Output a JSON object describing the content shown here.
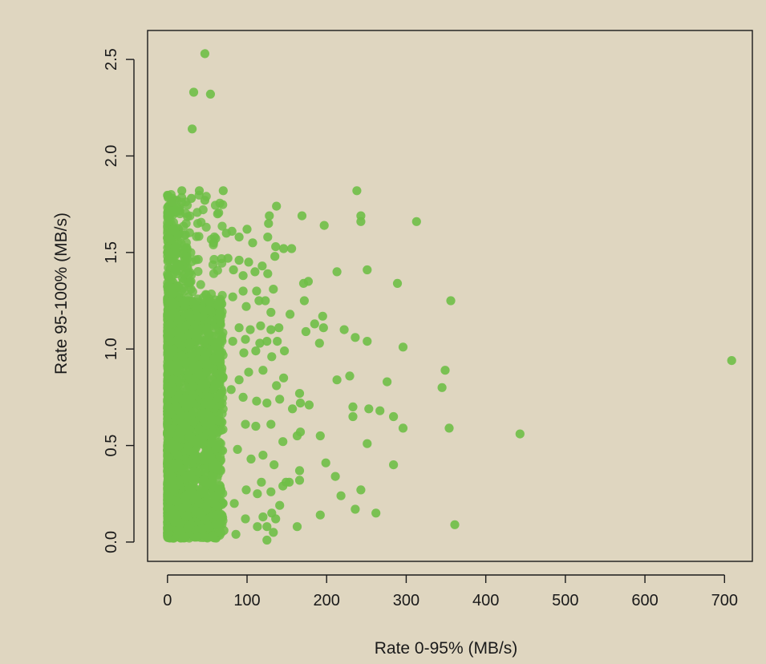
{
  "chart_data": {
    "type": "scatter",
    "title": "",
    "xlabel": "Rate 0-95% (MB/s)",
    "ylabel": "Rate 95-100% (MB/s)",
    "xlim": [
      -25,
      735
    ],
    "ylim": [
      -0.1,
      2.65
    ],
    "xticks": [
      0,
      100,
      200,
      300,
      400,
      500,
      600,
      700
    ],
    "xtick_labels": [
      "0",
      "100",
      "200",
      "300",
      "400",
      "500",
      "600",
      "700"
    ],
    "yticks": [
      0.0,
      0.5,
      1.0,
      1.5,
      2.0,
      2.5
    ],
    "ytick_labels": [
      "0.0",
      "0.5",
      "1.0",
      "1.5",
      "2.0",
      "2.5"
    ],
    "grid": false,
    "colors": {
      "point": "#6fbf47",
      "background": "#dfd6c0",
      "axis": "#1a1a1a"
    },
    "series": [
      {
        "points": [
          [
            47,
            2.53
          ],
          [
            33,
            2.33
          ],
          [
            54,
            2.32
          ],
          [
            31,
            2.14
          ],
          [
            70,
            1.82
          ],
          [
            238,
            1.82
          ],
          [
            243,
            1.69
          ],
          [
            243,
            1.66
          ],
          [
            313,
            1.66
          ],
          [
            169,
            1.69
          ],
          [
            137,
            1.74
          ],
          [
            128,
            1.69
          ],
          [
            127,
            1.65
          ],
          [
            197,
            1.64
          ],
          [
            100,
            1.62
          ],
          [
            90,
            1.58
          ],
          [
            81,
            1.61
          ],
          [
            74,
            1.6
          ],
          [
            107,
            1.55
          ],
          [
            126,
            1.58
          ],
          [
            136,
            1.53
          ],
          [
            146,
            1.52
          ],
          [
            156,
            1.52
          ],
          [
            135,
            1.48
          ],
          [
            119,
            1.43
          ],
          [
            102,
            1.45
          ],
          [
            90,
            1.46
          ],
          [
            76,
            1.47
          ],
          [
            83,
            1.41
          ],
          [
            95,
            1.38
          ],
          [
            110,
            1.4
          ],
          [
            126,
            1.39
          ],
          [
            251,
            1.41
          ],
          [
            213,
            1.4
          ],
          [
            289,
            1.34
          ],
          [
            177,
            1.35
          ],
          [
            171,
            1.34
          ],
          [
            133,
            1.31
          ],
          [
            112,
            1.3
          ],
          [
            95,
            1.3
          ],
          [
            82,
            1.27
          ],
          [
            99,
            1.22
          ],
          [
            115,
            1.25
          ],
          [
            123,
            1.25
          ],
          [
            130,
            1.19
          ],
          [
            154,
            1.18
          ],
          [
            172,
            1.25
          ],
          [
            356,
            1.25
          ],
          [
            195,
            1.17
          ],
          [
            185,
            1.13
          ],
          [
            196,
            1.11
          ],
          [
            222,
            1.1
          ],
          [
            174,
            1.09
          ],
          [
            140,
            1.11
          ],
          [
            130,
            1.1
          ],
          [
            117,
            1.12
          ],
          [
            104,
            1.1
          ],
          [
            90,
            1.11
          ],
          [
            82,
            1.04
          ],
          [
            98,
            1.05
          ],
          [
            116,
            1.03
          ],
          [
            125,
            1.04
          ],
          [
            138,
            1.04
          ],
          [
            147,
            0.99
          ],
          [
            131,
            0.96
          ],
          [
            111,
            0.99
          ],
          [
            96,
            0.98
          ],
          [
            191,
            1.03
          ],
          [
            236,
            1.06
          ],
          [
            251,
            1.04
          ],
          [
            296,
            1.01
          ],
          [
            709,
            0.94
          ],
          [
            349,
            0.89
          ],
          [
            345,
            0.8
          ],
          [
            276,
            0.83
          ],
          [
            229,
            0.86
          ],
          [
            213,
            0.84
          ],
          [
            146,
            0.85
          ],
          [
            137,
            0.81
          ],
          [
            120,
            0.89
          ],
          [
            102,
            0.88
          ],
          [
            90,
            0.84
          ],
          [
            80,
            0.79
          ],
          [
            95,
            0.75
          ],
          [
            112,
            0.73
          ],
          [
            125,
            0.72
          ],
          [
            141,
            0.74
          ],
          [
            157,
            0.69
          ],
          [
            166,
            0.77
          ],
          [
            167,
            0.72
          ],
          [
            178,
            0.71
          ],
          [
            233,
            0.7
          ],
          [
            233,
            0.65
          ],
          [
            253,
            0.69
          ],
          [
            267,
            0.68
          ],
          [
            284,
            0.65
          ],
          [
            296,
            0.59
          ],
          [
            354,
            0.59
          ],
          [
            443,
            0.56
          ],
          [
            251,
            0.51
          ],
          [
            192,
            0.55
          ],
          [
            167,
            0.57
          ],
          [
            163,
            0.55
          ],
          [
            145,
            0.52
          ],
          [
            130,
            0.61
          ],
          [
            111,
            0.6
          ],
          [
            98,
            0.61
          ],
          [
            88,
            0.48
          ],
          [
            105,
            0.43
          ],
          [
            120,
            0.45
          ],
          [
            134,
            0.4
          ],
          [
            149,
            0.31
          ],
          [
            153,
            0.31
          ],
          [
            166,
            0.37
          ],
          [
            166,
            0.32
          ],
          [
            199,
            0.41
          ],
          [
            211,
            0.34
          ],
          [
            218,
            0.24
          ],
          [
            243,
            0.27
          ],
          [
            284,
            0.4
          ],
          [
            236,
            0.17
          ],
          [
            262,
            0.15
          ],
          [
            361,
            0.09
          ],
          [
            192,
            0.14
          ],
          [
            163,
            0.08
          ],
          [
            145,
            0.29
          ],
          [
            130,
            0.26
          ],
          [
            118,
            0.31
          ],
          [
            113,
            0.25
          ],
          [
            99,
            0.27
          ],
          [
            120,
            0.13
          ],
          [
            131,
            0.15
          ],
          [
            125,
            0.08
          ],
          [
            133,
            0.05
          ],
          [
            113,
            0.08
          ],
          [
            98,
            0.12
          ],
          [
            86,
            0.04
          ],
          [
            84,
            0.2
          ],
          [
            125,
            0.01
          ],
          [
            136,
            0.12
          ],
          [
            141,
            0.19
          ],
          [
            71,
            0.06
          ],
          [
            58,
            1.55
          ],
          [
            63,
            1.7
          ],
          [
            47,
            1.77
          ],
          [
            40,
            1.82
          ],
          [
            30,
            1.78
          ],
          [
            18,
            1.82
          ],
          [
            12,
            1.77
          ],
          [
            5,
            1.76
          ]
        ],
        "dense_cluster": {
          "x_range": [
            0,
            70
          ],
          "y_range": [
            0.02,
            1.8
          ],
          "count": 2600
        }
      }
    ]
  }
}
